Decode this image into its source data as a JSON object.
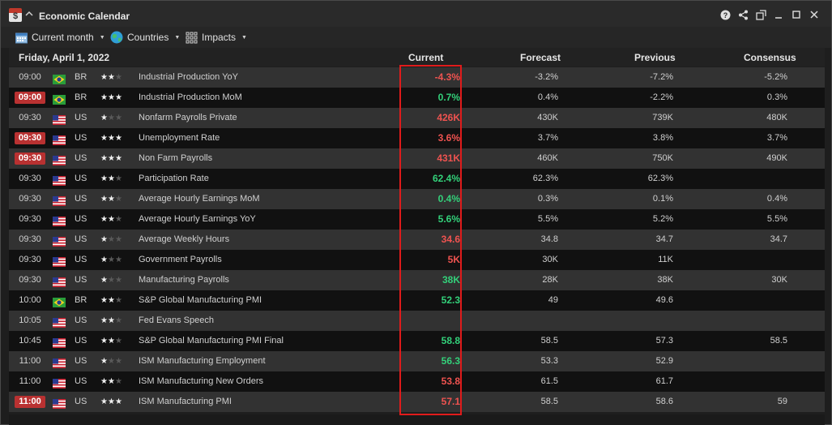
{
  "window": {
    "title": "Economic Calendar"
  },
  "toolbar": {
    "date_filter": "Current month",
    "countries_filter": "Countries",
    "impacts_filter": "Impacts"
  },
  "header": {
    "date": "Friday,  April 1, 2022",
    "current": "Current",
    "forecast": "Forecast",
    "previous": "Previous",
    "consensus": "Consensus"
  },
  "colors": {
    "negative": "#ef5350",
    "positive": "#33d17a",
    "badge": "#b93131",
    "highlight": "#e01b1b"
  },
  "rows": [
    {
      "time": "09:00",
      "badge": false,
      "flag": "br-flag-icon",
      "country": "BR",
      "stars": 2,
      "event": "Industrial Production YoY",
      "current": "-4.3%",
      "trend": "neg",
      "forecast": "-3.2%",
      "previous": "-7.2%",
      "consensus": "-5.2%"
    },
    {
      "time": "09:00",
      "badge": true,
      "flag": "br-flag-icon",
      "country": "BR",
      "stars": 3,
      "event": "Industrial Production MoM",
      "current": "0.7%",
      "trend": "pos",
      "forecast": "0.4%",
      "previous": "-2.2%",
      "consensus": "0.3%"
    },
    {
      "time": "09:30",
      "badge": false,
      "flag": "us-flag-icon",
      "country": "US",
      "stars": 1,
      "event": "Nonfarm Payrolls Private",
      "current": "426K",
      "trend": "neg",
      "forecast": "430K",
      "previous": "739K",
      "consensus": "480K"
    },
    {
      "time": "09:30",
      "badge": true,
      "flag": "us-flag-icon",
      "country": "US",
      "stars": 3,
      "event": "Unemployment Rate",
      "current": "3.6%",
      "trend": "neg",
      "forecast": "3.7%",
      "previous": "3.8%",
      "consensus": "3.7%"
    },
    {
      "time": "09:30",
      "badge": true,
      "flag": "us-flag-icon",
      "country": "US",
      "stars": 3,
      "event": "Non Farm Payrolls",
      "current": "431K",
      "trend": "neg",
      "forecast": "460K",
      "previous": "750K",
      "consensus": "490K"
    },
    {
      "time": "09:30",
      "badge": false,
      "flag": "us-flag-icon",
      "country": "US",
      "stars": 2,
      "event": "Participation Rate",
      "current": "62.4%",
      "trend": "pos",
      "forecast": "62.3%",
      "previous": "62.3%",
      "consensus": ""
    },
    {
      "time": "09:30",
      "badge": false,
      "flag": "us-flag-icon",
      "country": "US",
      "stars": 2,
      "event": "Average Hourly Earnings MoM",
      "current": "0.4%",
      "trend": "pos",
      "forecast": "0.3%",
      "previous": "0.1%",
      "consensus": "0.4%"
    },
    {
      "time": "09:30",
      "badge": false,
      "flag": "us-flag-icon",
      "country": "US",
      "stars": 2,
      "event": "Average Hourly Earnings YoY",
      "current": "5.6%",
      "trend": "pos",
      "forecast": "5.5%",
      "previous": "5.2%",
      "consensus": "5.5%"
    },
    {
      "time": "09:30",
      "badge": false,
      "flag": "us-flag-icon",
      "country": "US",
      "stars": 1,
      "event": "Average Weekly Hours",
      "current": "34.6",
      "trend": "neg",
      "forecast": "34.8",
      "previous": "34.7",
      "consensus": "34.7"
    },
    {
      "time": "09:30",
      "badge": false,
      "flag": "us-flag-icon",
      "country": "US",
      "stars": 1,
      "event": "Government Payrolls",
      "current": "5K",
      "trend": "neg",
      "forecast": "30K",
      "previous": "11K",
      "consensus": ""
    },
    {
      "time": "09:30",
      "badge": false,
      "flag": "us-flag-icon",
      "country": "US",
      "stars": 1,
      "event": "Manufacturing Payrolls",
      "current": "38K",
      "trend": "pos",
      "forecast": "28K",
      "previous": "38K",
      "consensus": "30K"
    },
    {
      "time": "10:00",
      "badge": false,
      "flag": "br-flag-icon",
      "country": "BR",
      "stars": 2,
      "event": "S&P Global Manufacturing PMI",
      "current": "52.3",
      "trend": "pos",
      "forecast": "49",
      "previous": "49.6",
      "consensus": ""
    },
    {
      "time": "10:05",
      "badge": false,
      "flag": "us-flag-icon",
      "country": "US",
      "stars": 2,
      "event": "Fed Evans Speech",
      "current": "",
      "trend": "",
      "forecast": "",
      "previous": "",
      "consensus": ""
    },
    {
      "time": "10:45",
      "badge": false,
      "flag": "us-flag-icon",
      "country": "US",
      "stars": 2,
      "event": "S&P Global Manufacturing PMI Final",
      "current": "58.8",
      "trend": "pos",
      "forecast": "58.5",
      "previous": "57.3",
      "consensus": "58.5"
    },
    {
      "time": "11:00",
      "badge": false,
      "flag": "us-flag-icon",
      "country": "US",
      "stars": 1,
      "event": "ISM Manufacturing Employment",
      "current": "56.3",
      "trend": "pos",
      "forecast": "53.3",
      "previous": "52.9",
      "consensus": ""
    },
    {
      "time": "11:00",
      "badge": false,
      "flag": "us-flag-icon",
      "country": "US",
      "stars": 2,
      "event": "ISM Manufacturing New Orders",
      "current": "53.8",
      "trend": "neg",
      "forecast": "61.5",
      "previous": "61.7",
      "consensus": ""
    },
    {
      "time": "11:00",
      "badge": true,
      "flag": "us-flag-icon",
      "country": "US",
      "stars": 3,
      "event": "ISM Manufacturing PMI",
      "current": "57.1",
      "trend": "neg",
      "forecast": "58.5",
      "previous": "58.6",
      "consensus": "59"
    }
  ]
}
